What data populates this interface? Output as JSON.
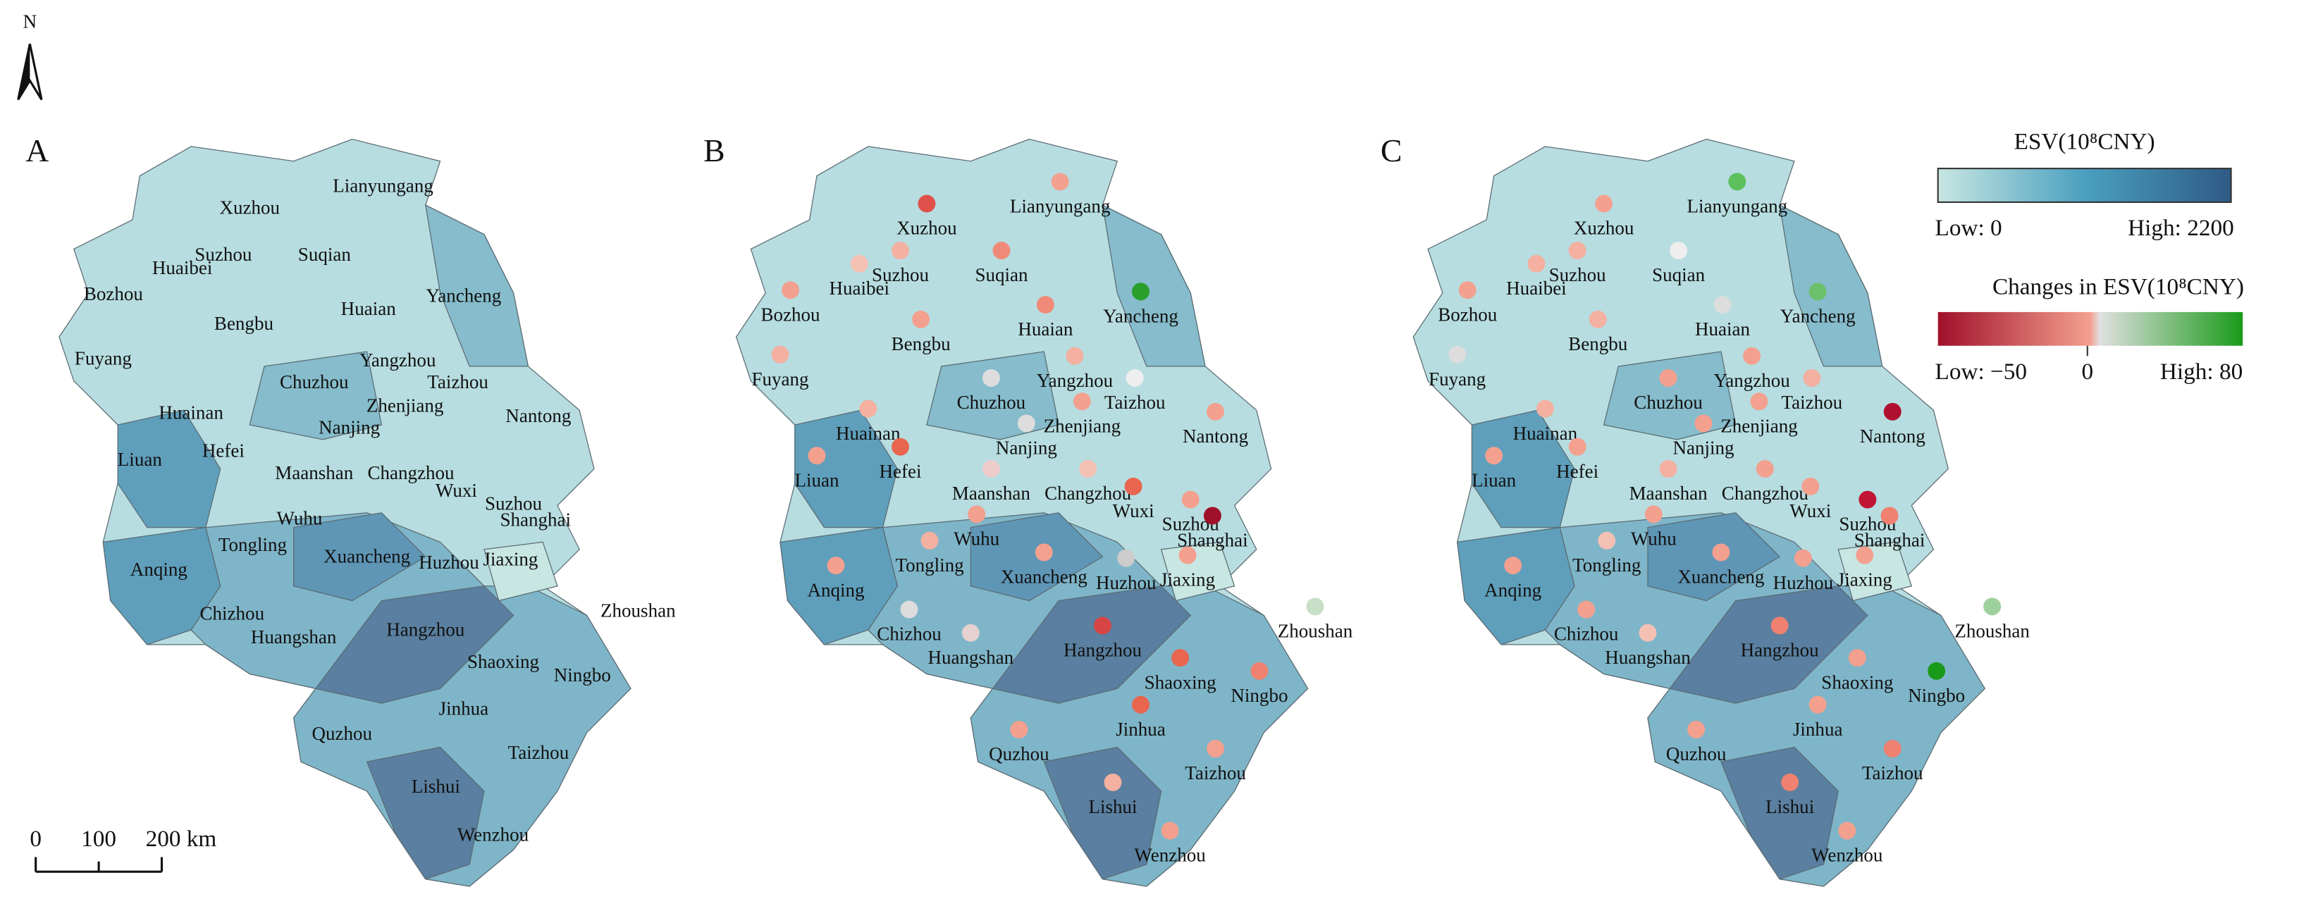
{
  "north": "N",
  "scale_bar": {
    "labels": [
      "0",
      "100",
      "200 km"
    ]
  },
  "legend": {
    "esv": {
      "title": "ESV(10⁸CNY)",
      "low": "Low: 0",
      "high": "High: 2200"
    },
    "change": {
      "title": "Changes in ESV(10⁸CNY)",
      "low": "Low: −50",
      "zero": "0",
      "high": "High: 80"
    }
  },
  "cities": [
    "Lianyungang",
    "Xuzhou",
    "Suzhou",
    "Suqian",
    "Huaibei",
    "Bozhou",
    "Huaian",
    "Yancheng",
    "Bengbu",
    "Fuyang",
    "Yangzhou",
    "Chuzhou",
    "Taizhou",
    "Huainan",
    "Nanjing",
    "Zhenjiang",
    "Nantong",
    "Hefei",
    "Liuan",
    "Maanshan",
    "Changzhou",
    "Wuxi",
    "Suzhou",
    "Shanghai",
    "Wuhu",
    "Tongling",
    "Xuancheng",
    "Huzhou",
    "Jiaxing",
    "Anqing",
    "Zhoushan",
    "Chizhou",
    "Huangshan",
    "Hangzhou",
    "Shaoxing",
    "Ningbo",
    "Jinhua",
    "Quzhou",
    "Taizhou",
    "Lishui",
    "Wenzhou"
  ],
  "panels": [
    {
      "label": "A"
    },
    {
      "label": "B",
      "dot_colors": [
        "#f4a08f",
        "#e0504a",
        "#f4b0a0",
        "#f08a78",
        "#f4c0b4",
        "#f4a08f",
        "#f08a78",
        "#2aa02a",
        "#f4a08f",
        "#f4b0a0",
        "#f4b0a0",
        "#dddddd",
        "#eeeeee",
        "#f4b0a0",
        "#dddddd",
        "#f4a08f",
        "#f4a08f",
        "#e8664f",
        "#f4a08f",
        "#eecccc",
        "#f4c0b4",
        "#e8664f",
        "#f4a08f",
        "#a0102a",
        "#f4a08f",
        "#f4b0a0",
        "#f4a08f",
        "#cccccc",
        "#f4a08f",
        "#f4a08f",
        "#c8e0c8",
        "#dddddd",
        "#e6d0d0",
        "#d84545",
        "#e8664f",
        "#f08070",
        "#e8664f",
        "#f4a08f",
        "#f4a08f",
        "#f4b0a0",
        "#f4a08f"
      ]
    },
    {
      "label": "C",
      "dot_colors": [
        "#5cc05c",
        "#f4a08f",
        "#f4b0a0",
        "#eeeeee",
        "#f4b0a0",
        "#f4a08f",
        "#dddddd",
        "#6cc06c",
        "#f4b0a0",
        "#dddddd",
        "#f4a08f",
        "#f4a08f",
        "#f4b0a0",
        "#f4b0a0",
        "#f4a08f",
        "#f4a08f",
        "#b01030",
        "#f4a08f",
        "#f4a08f",
        "#f4b0a0",
        "#f4a08f",
        "#f4a08f",
        "#c01535",
        "#f08070",
        "#f4a08f",
        "#f4c0b4",
        "#f4a08f",
        "#f4a08f",
        "#f4a08f",
        "#f4a08f",
        "#9ed09e",
        "#f4a08f",
        "#f4c0b4",
        "#f08070",
        "#f4a08f",
        "#1a9a1a",
        "#f4a08f",
        "#f4a08f",
        "#f08070",
        "#f08070",
        "#f4a08f"
      ]
    }
  ]
}
